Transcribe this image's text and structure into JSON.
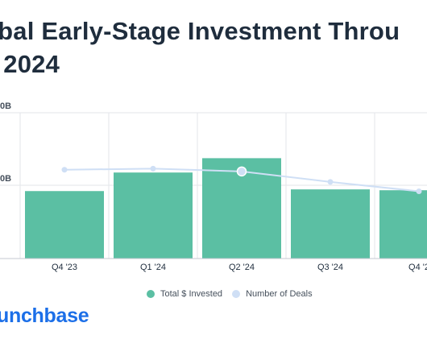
{
  "title_line1": "obal Early-Stage Investment Throu",
  "title_line2": "4 2024",
  "brand": "unchbase",
  "colors": {
    "bars": "#5bbfa3",
    "line": "#cfdff5",
    "grid": "#e3e6ea",
    "text": "#1f2d3d",
    "brand": "#1c6fe8"
  },
  "chart_data": {
    "type": "bar",
    "categories": [
      "Q4 '23",
      "Q1 '24",
      "Q2 '24",
      "Q3 '24",
      "Q4 '2"
    ],
    "y_tick_labels": [
      "0B",
      "0B"
    ],
    "series": [
      {
        "name": "Total $ Invested",
        "type": "bar",
        "values": [
          40.0,
          51.0,
          59.5,
          41.0,
          40.5
        ]
      },
      {
        "name": "Number of Deals",
        "type": "line",
        "values": [
          8050,
          8150,
          7900,
          6950,
          6100
        ],
        "highlight_index": 2
      }
    ],
    "ylim": [
      0,
      85
    ],
    "y2lim": [
      0,
      13000
    ],
    "grid": true,
    "legend": "bottom"
  }
}
